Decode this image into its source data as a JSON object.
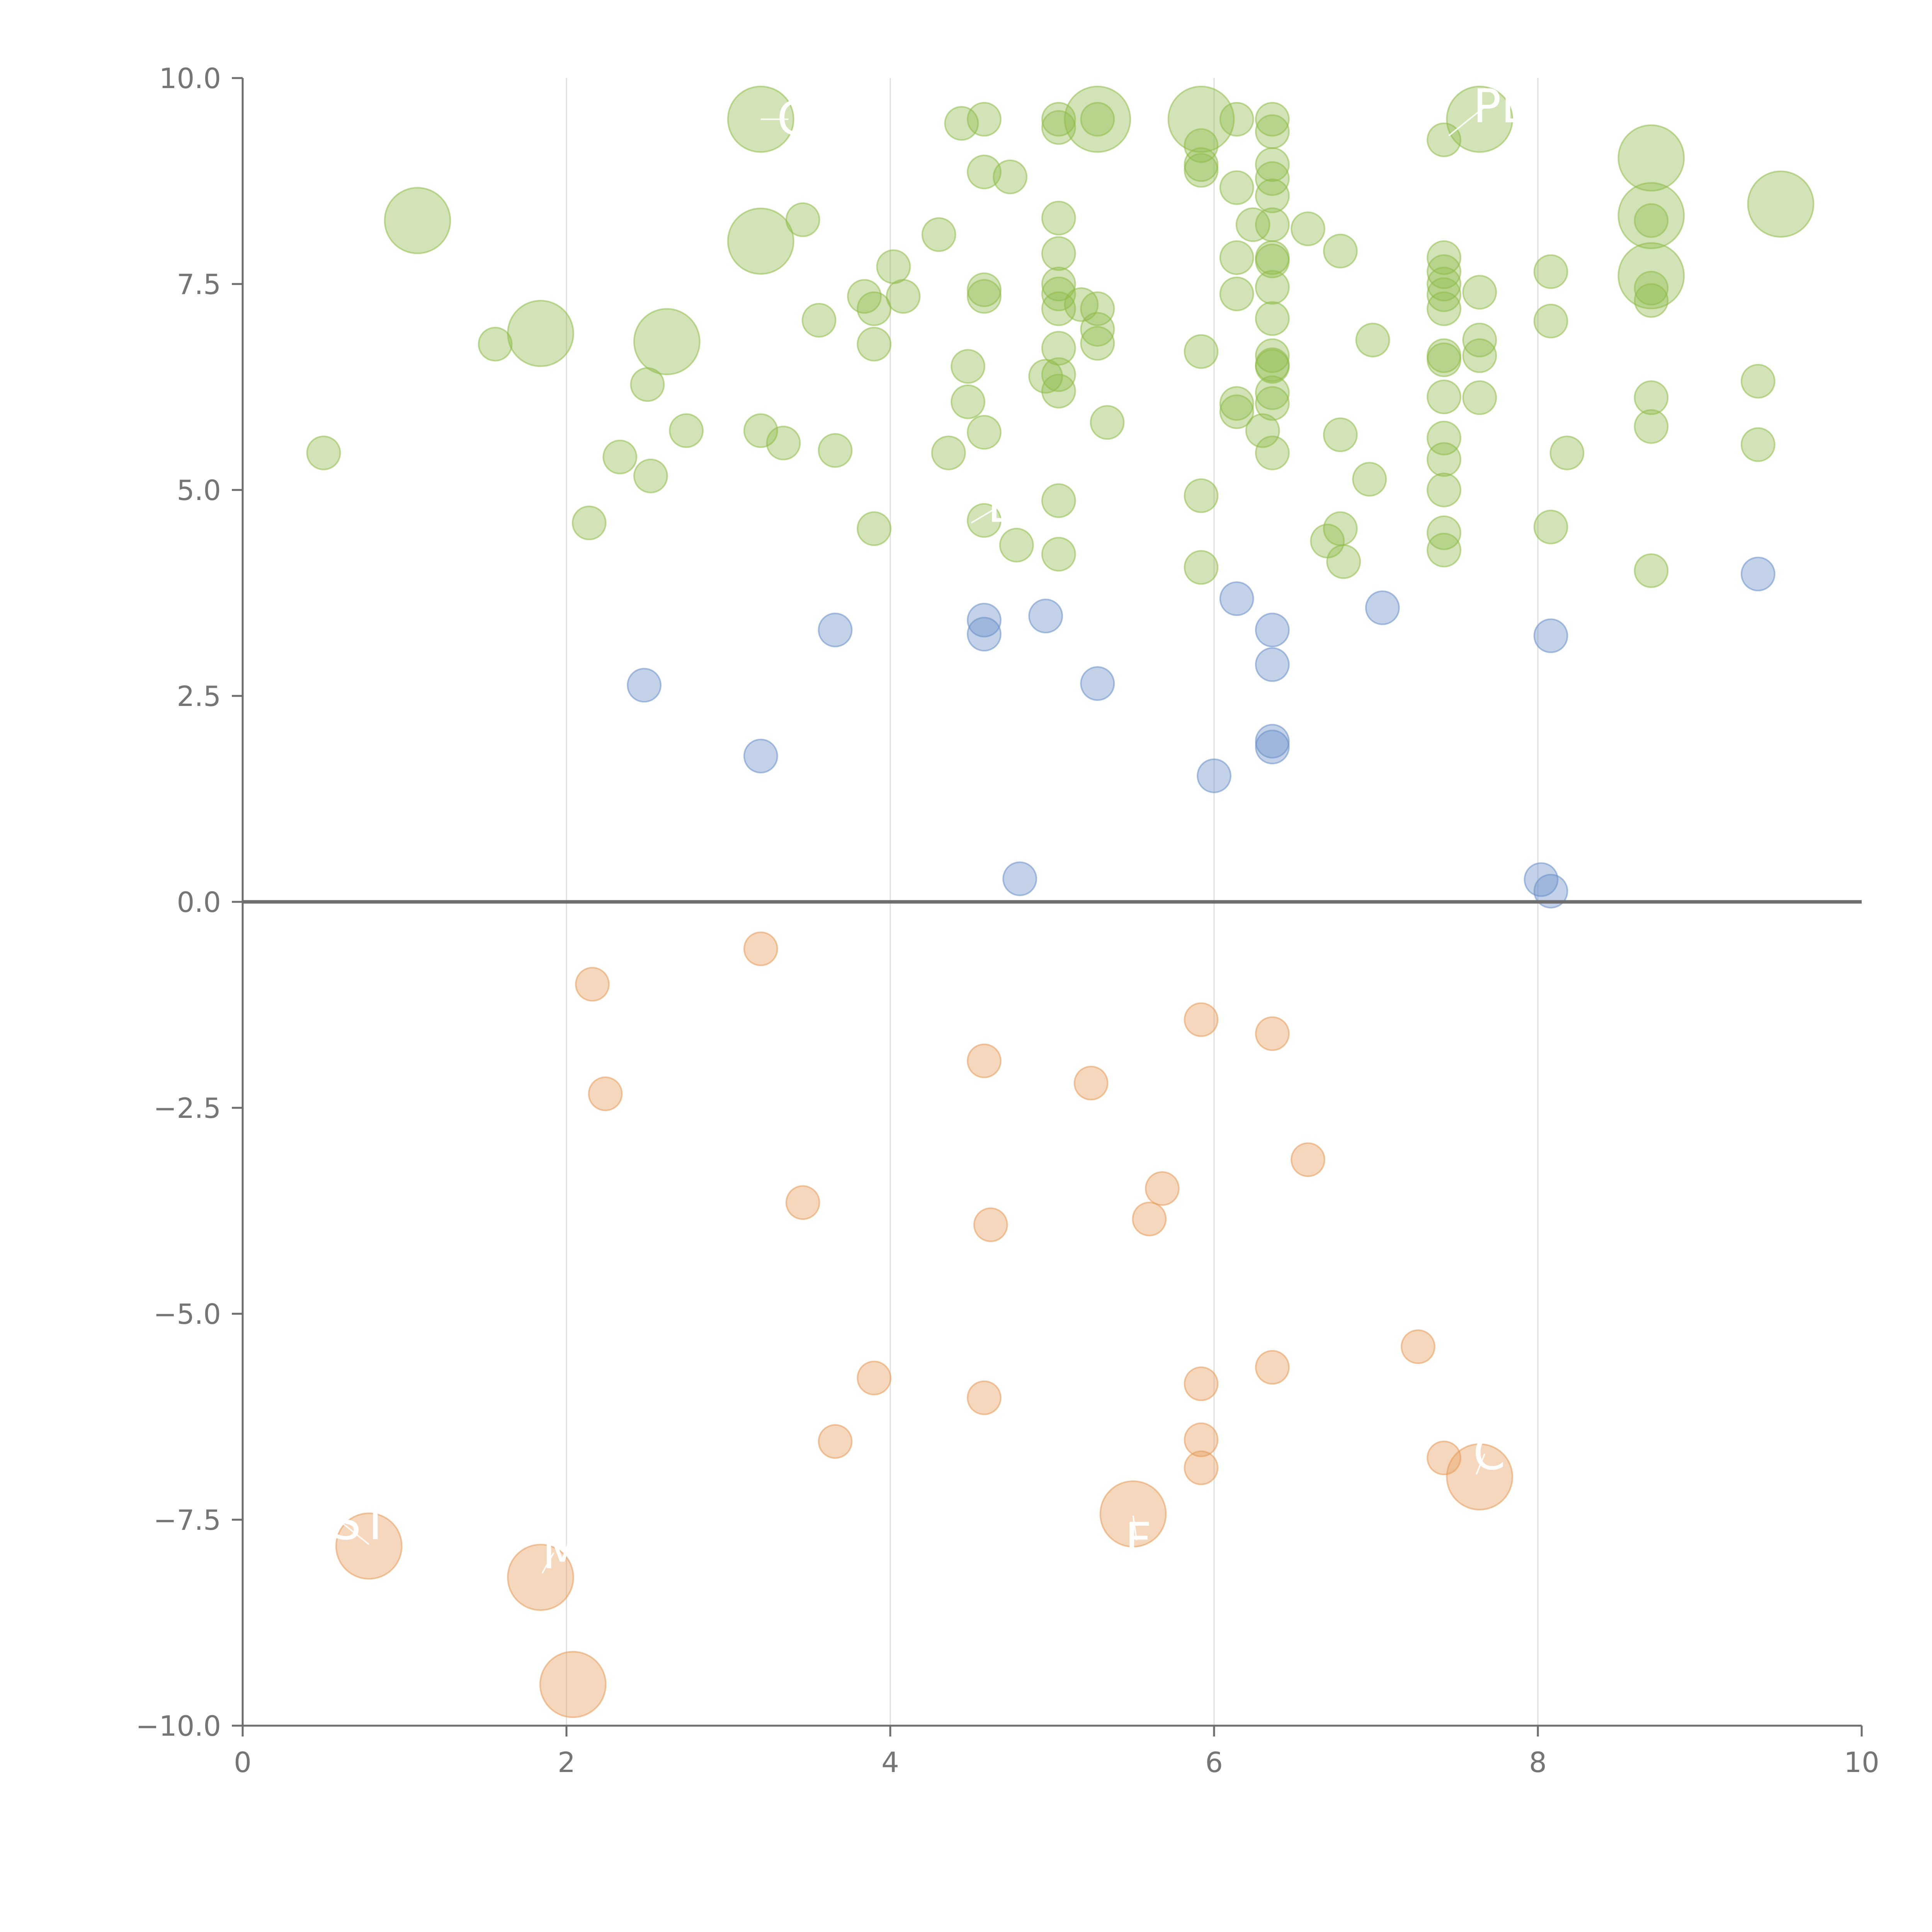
{
  "chart_data": {
    "type": "scatter",
    "title": "",
    "xlabel": "",
    "ylabel": "",
    "xlim": [
      0,
      10
    ],
    "ylim": [
      -10,
      10
    ],
    "x_ticks": [
      "0",
      "2",
      "4",
      "6",
      "8",
      "10"
    ],
    "y_ticks": [
      "10.0",
      "7.5",
      "5.0",
      "2.5",
      "0.0",
      "−2.5",
      "−5.0",
      "−7.5",
      "−10.0"
    ],
    "x_tick_values": [
      0,
      2,
      4,
      6,
      8,
      10
    ],
    "y_tick_values": [
      10,
      7.5,
      5,
      2.5,
      0,
      -2.5,
      -5,
      -7.5,
      -10
    ],
    "grid": "vertical",
    "colors": {
      "green": "#8fbc4a",
      "blue": "#6a8fc8",
      "orange": "#e59a5a",
      "axis": "#6e6e6e",
      "grid": "#dedede",
      "tick": "#757575",
      "label": "#ffffff"
    },
    "series": [
      {
        "name": "green",
        "color": "#8fbc4a",
        "points": [
          [
            0.5,
            5.45,
            0.8
          ],
          [
            1.08,
            8.27,
            2
          ],
          [
            1.56,
            6.77,
            0.8
          ],
          [
            1.84,
            6.9,
            2
          ],
          [
            2.14,
            4.6,
            0.8
          ],
          [
            2.33,
            5.4,
            0.8
          ],
          [
            2.5,
            6.28,
            0.8
          ],
          [
            2.52,
            5.17,
            0.8
          ],
          [
            2.62,
            6.8,
            2
          ],
          [
            2.74,
            5.72,
            0.8
          ],
          [
            3.2,
            9.5,
            2
          ],
          [
            3.2,
            8.02,
            2
          ],
          [
            3.2,
            5.72,
            0.8
          ],
          [
            3.34,
            5.57,
            0.8
          ],
          [
            3.46,
            8.28,
            0.8
          ],
          [
            3.56,
            7.06,
            0.8
          ],
          [
            3.66,
            5.48,
            0.8
          ],
          [
            3.84,
            7.35,
            0.8
          ],
          [
            3.9,
            6.77,
            0.8
          ],
          [
            3.9,
            7.2,
            0.8
          ],
          [
            3.9,
            4.53,
            0.8
          ],
          [
            4.02,
            7.71,
            0.8
          ],
          [
            4.08,
            7.35,
            0.8
          ],
          [
            4.3,
            8.1,
            0.8
          ],
          [
            4.36,
            5.45,
            0.8
          ],
          [
            4.44,
            9.45,
            0.8
          ],
          [
            4.48,
            6.5,
            0.8
          ],
          [
            4.48,
            6.07,
            0.8
          ],
          [
            4.58,
            9.5,
            0.8
          ],
          [
            4.58,
            8.86,
            0.8
          ],
          [
            4.58,
            7.43,
            0.8
          ],
          [
            4.58,
            7.35,
            0.8
          ],
          [
            4.58,
            5.7,
            0.8
          ],
          [
            4.58,
            4.63,
            0.8
          ],
          [
            4.74,
            8.8,
            0.8
          ],
          [
            4.78,
            4.33,
            0.8
          ],
          [
            4.96,
            6.38,
            0.8
          ],
          [
            5.04,
            9.5,
            0.8
          ],
          [
            5.04,
            9.4,
            0.8
          ],
          [
            5.04,
            8.3,
            0.8
          ],
          [
            5.04,
            7.87,
            0.8
          ],
          [
            5.04,
            7.5,
            0.8
          ],
          [
            5.04,
            7.38,
            0.8
          ],
          [
            5.04,
            7.2,
            0.8
          ],
          [
            5.04,
            6.72,
            0.8
          ],
          [
            5.04,
            6.4,
            0.8
          ],
          [
            5.04,
            6.2,
            0.8
          ],
          [
            5.04,
            4.87,
            0.8
          ],
          [
            5.04,
            4.22,
            0.8
          ],
          [
            5.18,
            7.25,
            0.8
          ],
          [
            5.28,
            9.5,
            2
          ],
          [
            5.28,
            9.5,
            0.8
          ],
          [
            5.28,
            7.2,
            0.8
          ],
          [
            5.28,
            6.95,
            0.8
          ],
          [
            5.28,
            6.78,
            0.8
          ],
          [
            5.34,
            5.82,
            0.8
          ],
          [
            5.92,
            9.5,
            2
          ],
          [
            5.92,
            9.18,
            0.8
          ],
          [
            5.92,
            8.95,
            0.8
          ],
          [
            5.92,
            8.88,
            0.8
          ],
          [
            5.92,
            6.68,
            0.8
          ],
          [
            5.92,
            4.93,
            0.8
          ],
          [
            5.92,
            4.06,
            0.8
          ],
          [
            6.14,
            9.5,
            0.8
          ],
          [
            6.14,
            8.67,
            0.8
          ],
          [
            6.14,
            7.82,
            0.8
          ],
          [
            6.14,
            7.38,
            0.8
          ],
          [
            6.14,
            6.05,
            0.8
          ],
          [
            6.14,
            5.95,
            0.8
          ],
          [
            6.24,
            8.22,
            0.8
          ],
          [
            6.3,
            5.72,
            0.8
          ],
          [
            6.36,
            9.5,
            0.8
          ],
          [
            6.36,
            9.35,
            0.8
          ],
          [
            6.36,
            8.95,
            0.8
          ],
          [
            6.36,
            8.78,
            0.8
          ],
          [
            6.36,
            8.57,
            0.8
          ],
          [
            6.36,
            8.22,
            0.8
          ],
          [
            6.36,
            7.82,
            0.8
          ],
          [
            6.36,
            7.78,
            0.8
          ],
          [
            6.36,
            7.46,
            0.8
          ],
          [
            6.36,
            7.08,
            0.8
          ],
          [
            6.36,
            6.63,
            0.8
          ],
          [
            6.36,
            6.52,
            0.8
          ],
          [
            6.36,
            6.5,
            0.8
          ],
          [
            6.36,
            6.18,
            0.8
          ],
          [
            6.36,
            6.05,
            0.8
          ],
          [
            6.36,
            5.45,
            0.8
          ],
          [
            6.58,
            8.17,
            0.8
          ],
          [
            6.7,
            4.38,
            0.8
          ],
          [
            6.78,
            7.9,
            0.8
          ],
          [
            6.78,
            5.67,
            0.8
          ],
          [
            6.78,
            4.53,
            0.8
          ],
          [
            6.8,
            4.13,
            0.8
          ],
          [
            6.96,
            5.13,
            0.8
          ],
          [
            6.98,
            6.82,
            0.8
          ],
          [
            7.42,
            9.25,
            0.8
          ],
          [
            7.42,
            7.82,
            0.8
          ],
          [
            7.42,
            7.65,
            0.8
          ],
          [
            7.42,
            7.5,
            0.8
          ],
          [
            7.42,
            7.37,
            0.8
          ],
          [
            7.42,
            7.2,
            0.8
          ],
          [
            7.42,
            6.63,
            0.8
          ],
          [
            7.42,
            6.58,
            0.8
          ],
          [
            7.42,
            6.13,
            0.8
          ],
          [
            7.42,
            5.63,
            0.8
          ],
          [
            7.42,
            5.37,
            0.8
          ],
          [
            7.42,
            5.0,
            0.8
          ],
          [
            7.42,
            4.48,
            0.8
          ],
          [
            7.42,
            4.27,
            0.8
          ],
          [
            7.64,
            9.5,
            2
          ],
          [
            7.64,
            7.4,
            0.8
          ],
          [
            7.64,
            6.82,
            0.8
          ],
          [
            7.64,
            6.63,
            0.8
          ],
          [
            7.64,
            6.12,
            0.8
          ],
          [
            8.08,
            7.65,
            0.8
          ],
          [
            8.08,
            7.05,
            0.8
          ],
          [
            8.08,
            4.55,
            0.8
          ],
          [
            8.18,
            5.45,
            0.8
          ],
          [
            8.7,
            9.03,
            2
          ],
          [
            8.7,
            8.33,
            2
          ],
          [
            8.7,
            8.27,
            0.8
          ],
          [
            8.7,
            7.6,
            2
          ],
          [
            8.7,
            7.45,
            0.8
          ],
          [
            8.7,
            7.3,
            0.8
          ],
          [
            8.7,
            6.12,
            0.8
          ],
          [
            8.7,
            5.77,
            0.8
          ],
          [
            8.7,
            4.02,
            0.8
          ],
          [
            9.36,
            6.32,
            0.8
          ],
          [
            9.36,
            5.55,
            0.8
          ],
          [
            9.5,
            8.47,
            2
          ]
        ]
      },
      {
        "name": "blue",
        "color": "#6a8fc8",
        "points": [
          [
            2.48,
            2.63,
            0.8
          ],
          [
            3.2,
            1.77,
            0.8
          ],
          [
            3.66,
            3.3,
            0.8
          ],
          [
            4.58,
            3.42,
            0.8
          ],
          [
            4.58,
            3.25,
            0.8
          ],
          [
            4.8,
            0.28,
            0.8
          ],
          [
            4.96,
            3.47,
            0.8
          ],
          [
            5.28,
            2.65,
            0.8
          ],
          [
            6.0,
            1.53,
            0.8
          ],
          [
            6.14,
            3.68,
            0.8
          ],
          [
            6.36,
            3.3,
            0.8
          ],
          [
            6.36,
            2.88,
            0.8
          ],
          [
            6.36,
            1.95,
            0.8
          ],
          [
            6.36,
            1.88,
            0.8
          ],
          [
            7.04,
            3.57,
            0.8
          ],
          [
            8.02,
            0.27,
            0.8
          ],
          [
            8.08,
            0.13,
            0.8
          ],
          [
            8.08,
            3.23,
            0.8
          ],
          [
            9.36,
            3.98,
            0.8
          ]
        ]
      },
      {
        "name": "orange",
        "color": "#e59a5a",
        "points": [
          [
            0.78,
            -7.82,
            2
          ],
          [
            1.84,
            -8.2,
            2
          ],
          [
            2.04,
            -9.5,
            2
          ],
          [
            2.16,
            -1.0,
            0.8
          ],
          [
            2.24,
            -2.33,
            0.8
          ],
          [
            3.2,
            -0.57,
            0.8
          ],
          [
            3.46,
            -3.65,
            0.8
          ],
          [
            3.66,
            -6.55,
            0.8
          ],
          [
            3.9,
            -5.78,
            0.8
          ],
          [
            4.58,
            -1.93,
            0.8
          ],
          [
            4.58,
            -6.02,
            0.8
          ],
          [
            4.62,
            -3.92,
            0.8
          ],
          [
            5.24,
            -2.2,
            0.8
          ],
          [
            5.5,
            -7.43,
            2
          ],
          [
            5.6,
            -3.85,
            0.8
          ],
          [
            5.68,
            -3.48,
            0.8
          ],
          [
            5.92,
            -1.43,
            0.8
          ],
          [
            5.92,
            -5.85,
            0.8
          ],
          [
            5.92,
            -6.53,
            0.8
          ],
          [
            5.92,
            -6.87,
            0.8
          ],
          [
            6.36,
            -1.6,
            0.8
          ],
          [
            6.36,
            -5.65,
            0.8
          ],
          [
            6.58,
            -3.13,
            0.8
          ],
          [
            7.26,
            -5.4,
            0.8
          ],
          [
            7.42,
            -6.75,
            0.8
          ],
          [
            7.64,
            -6.98,
            2
          ]
        ]
      }
    ],
    "annotations": [
      {
        "text": "CO",
        "x": 3.3,
        "y": 9.5,
        "lx": 3.2,
        "ly": 9.5
      },
      {
        "text": "PE",
        "x": 7.6,
        "y": 9.65,
        "lx": 7.45,
        "ly": 9.3
      },
      {
        "text": "B",
        "x": 4.6,
        "y": 4.8,
        "lx": 4.5,
        "ly": 4.6
      },
      {
        "text": "ST",
        "x": 0.55,
        "y": -7.55,
        "lx": 0.78,
        "ly": -7.8
      },
      {
        "text": "M",
        "x": 1.85,
        "y": -7.9,
        "lx": 1.85,
        "ly": -8.15
      },
      {
        "text": "F",
        "x": 5.45,
        "y": -7.75,
        "lx": 5.5,
        "ly": -7.45
      },
      {
        "text": "C",
        "x": 7.6,
        "y": -6.7,
        "lx": 7.62,
        "ly": -6.95
      }
    ]
  }
}
